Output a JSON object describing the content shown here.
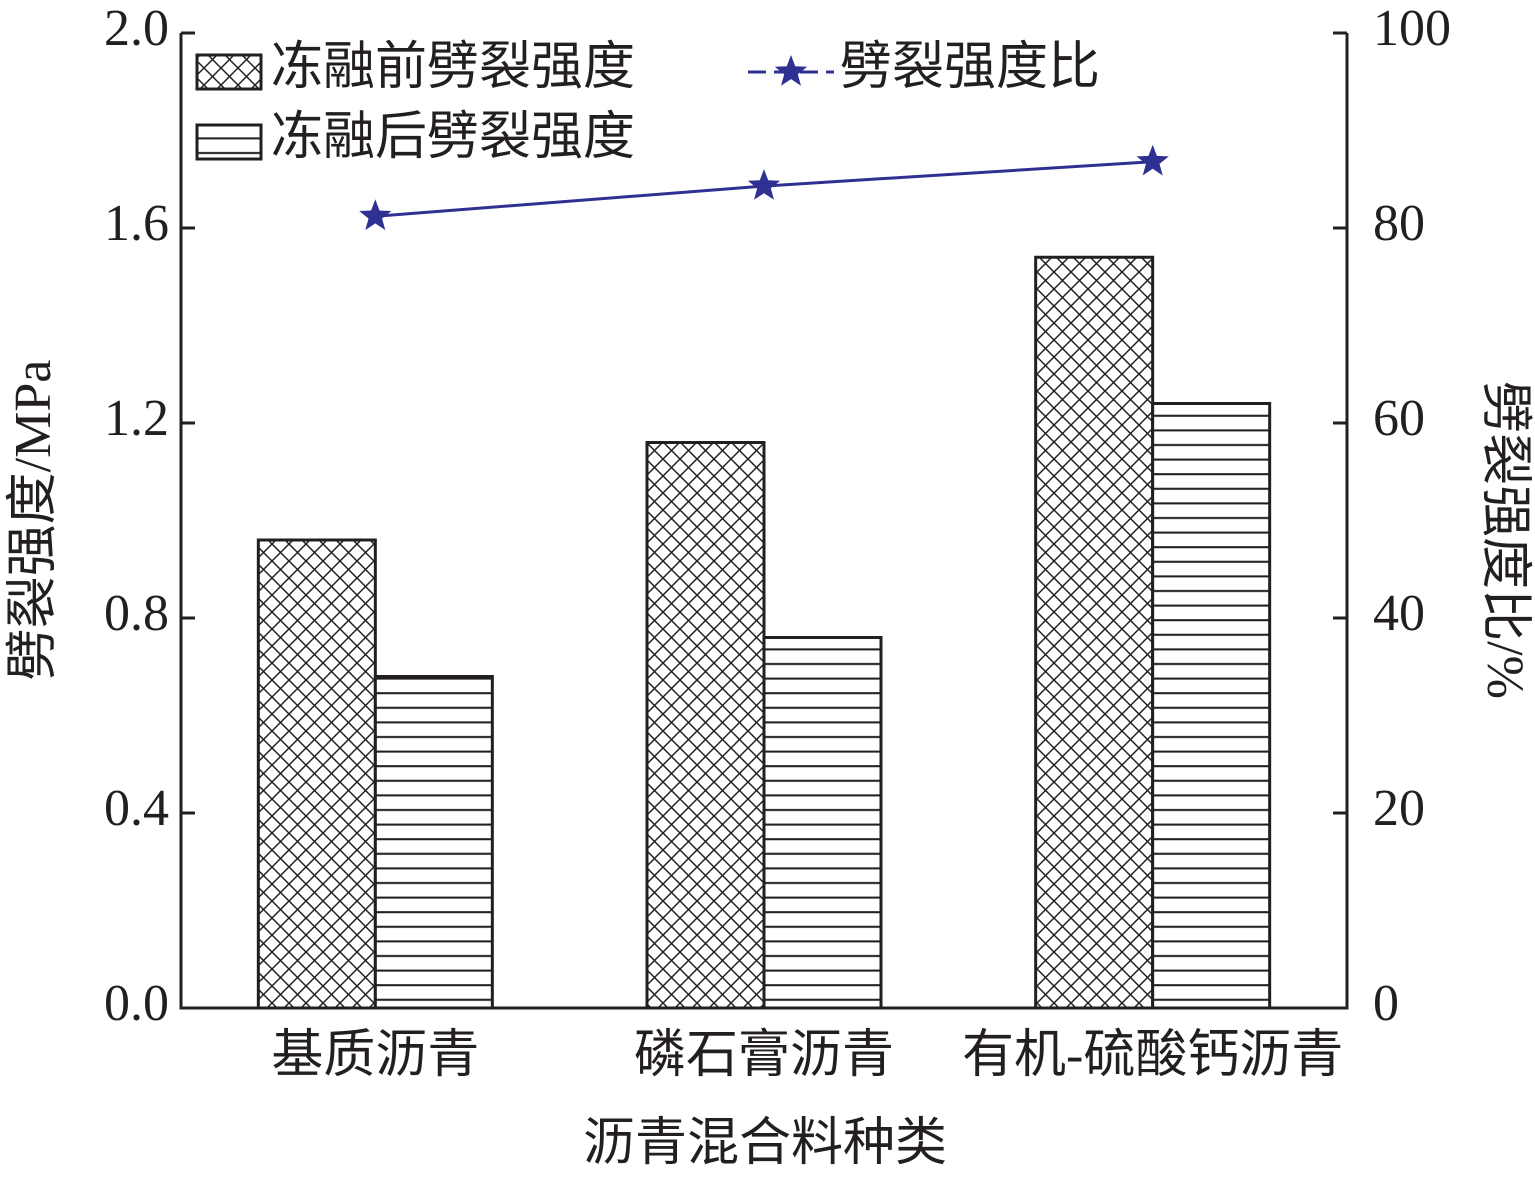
{
  "chart_data": {
    "type": "bar",
    "x_label": "沥青混合料种类",
    "y_label": "劈裂强度/MPa",
    "y2_label": "劈裂强度比/%",
    "categories": [
      "基质沥青",
      "磷石膏沥青",
      "有机-硫酸钙沥青"
    ],
    "series": [
      {
        "name": "冻融前劈裂强度",
        "type": "bar",
        "hatch": "cross",
        "color": "#231f20",
        "values": [
          0.96,
          1.16,
          1.54
        ]
      },
      {
        "name": "冻融后劈裂强度",
        "type": "bar",
        "hatch": "horizontal",
        "color": "#231f20",
        "values": [
          0.68,
          0.76,
          1.24
        ]
      },
      {
        "name": "劈裂强度比",
        "type": "line",
        "marker": "star",
        "color": "#2e3192",
        "axis": "y2",
        "values": [
          81.2,
          84.3,
          86.8
        ]
      }
    ],
    "ylim": [
      0,
      2
    ],
    "yticks": [
      {
        "value": 0,
        "label": "0.0"
      },
      {
        "value": 0.4,
        "label": "0.4"
      },
      {
        "value": 0.8,
        "label": "0.8"
      },
      {
        "value": 1.2,
        "label": "1.2"
      },
      {
        "value": 1.6,
        "label": "1.6"
      },
      {
        "value": 2,
        "label": "2.0"
      }
    ],
    "y2lim": [
      0,
      100
    ],
    "y2ticks": [
      0,
      20,
      40,
      60,
      80,
      100
    ]
  }
}
